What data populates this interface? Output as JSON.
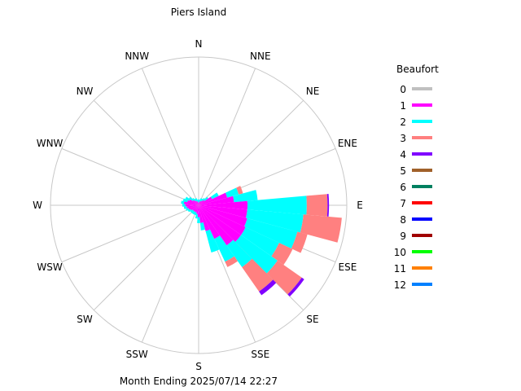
{
  "chart_data": {
    "type": "wind-rose",
    "title": "Piers Island",
    "footer": "Month Ending 2025/07/14 22:27",
    "legend": {
      "title": "Beaufort",
      "placement": "right",
      "entries": [
        {
          "label": "0",
          "color": "#c0c0c0"
        },
        {
          "label": "1",
          "color": "#ff00ff"
        },
        {
          "label": "2",
          "color": "#00ffff"
        },
        {
          "label": "3",
          "color": "#ff8080"
        },
        {
          "label": "4",
          "color": "#8000ff"
        },
        {
          "label": "5",
          "color": "#a0602a"
        },
        {
          "label": "6",
          "color": "#008060"
        },
        {
          "label": "7",
          "color": "#ff0000"
        },
        {
          "label": "8",
          "color": "#0000ff"
        },
        {
          "label": "9",
          "color": "#a00000"
        },
        {
          "label": "10",
          "color": "#00ff00"
        },
        {
          "label": "11",
          "color": "#ff8000"
        },
        {
          "label": "12",
          "color": "#0080ff"
        }
      ]
    },
    "directions": [
      "N",
      "NNE",
      "NE",
      "ENE",
      "E",
      "ESE",
      "SE",
      "SSE",
      "S",
      "SSW",
      "SW",
      "WSW",
      "W",
      "WNW",
      "NW",
      "NNW"
    ],
    "max_scale": 100,
    "bin_width_deg": 10,
    "bins": [
      {
        "angle": 0,
        "stack": [
          2,
          2
        ]
      },
      {
        "angle": 10,
        "stack": [
          2,
          2
        ]
      },
      {
        "angle": 20,
        "stack": [
          3,
          2
        ]
      },
      {
        "angle": 30,
        "stack": [
          3,
          2
        ]
      },
      {
        "angle": 40,
        "stack": [
          4,
          2
        ]
      },
      {
        "angle": 50,
        "stack": [
          5,
          3
        ]
      },
      {
        "angle": 60,
        "stack": [
          10,
          5
        ]
      },
      {
        "angle": 70,
        "stack": [
          20,
          8,
          3
        ]
      },
      {
        "angle": 80,
        "stack": [
          24,
          16
        ]
      },
      {
        "angle": 90,
        "stack": [
          33,
          40,
          14,
          1
        ]
      },
      {
        "angle": 100,
        "stack": [
          33,
          38,
          26
        ]
      },
      {
        "angle": 110,
        "stack": [
          34,
          35,
          7
        ]
      },
      {
        "angle": 120,
        "stack": [
          35,
          25,
          10
        ]
      },
      {
        "angle": 130,
        "stack": [
          35,
          30,
          20,
          2
        ]
      },
      {
        "angle": 140,
        "stack": [
          33,
          18,
          20,
          3
        ]
      },
      {
        "angle": 150,
        "stack": [
          25,
          17,
          4
        ]
      },
      {
        "angle": 160,
        "stack": [
          18,
          15
        ]
      },
      {
        "angle": 170,
        "stack": [
          12,
          5
        ]
      },
      {
        "angle": 180,
        "stack": [
          8,
          4
        ]
      },
      {
        "angle": 190,
        "stack": [
          6,
          3
        ]
      },
      {
        "angle": 200,
        "stack": [
          5,
          2
        ]
      },
      {
        "angle": 210,
        "stack": [
          5,
          2
        ]
      },
      {
        "angle": 220,
        "stack": [
          5,
          2
        ]
      },
      {
        "angle": 230,
        "stack": [
          5,
          2
        ]
      },
      {
        "angle": 240,
        "stack": [
          6,
          2
        ]
      },
      {
        "angle": 250,
        "stack": [
          7,
          2
        ]
      },
      {
        "angle": 260,
        "stack": [
          8,
          2
        ]
      },
      {
        "angle": 270,
        "stack": [
          9,
          2
        ]
      },
      {
        "angle": 280,
        "stack": [
          10,
          2
        ]
      },
      {
        "angle": 290,
        "stack": [
          8,
          3
        ]
      },
      {
        "angle": 300,
        "stack": [
          7,
          3
        ]
      },
      {
        "angle": 310,
        "stack": [
          5,
          3
        ]
      },
      {
        "angle": 320,
        "stack": [
          4,
          2
        ]
      },
      {
        "angle": 330,
        "stack": [
          3,
          2
        ]
      },
      {
        "angle": 340,
        "stack": [
          3,
          2
        ]
      },
      {
        "angle": 350,
        "stack": [
          2,
          2
        ]
      }
    ]
  }
}
